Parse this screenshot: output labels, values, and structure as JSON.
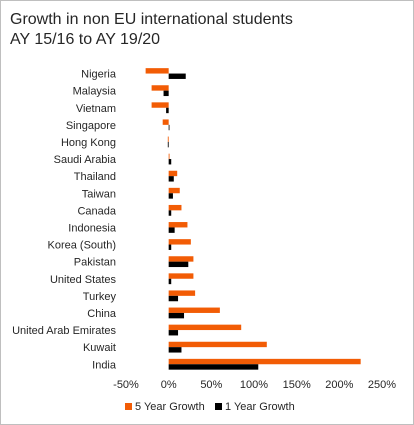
{
  "chart_data": {
    "type": "bar",
    "orientation": "horizontal",
    "title": "Growth in non EU international students",
    "subtitle": "AY 15/16 to AY 19/20",
    "categories": [
      "Nigeria",
      "Malaysia",
      "Vietnam",
      "Singapore",
      "Hong Kong",
      "Saudi Arabia",
      "Thailand",
      "Taiwan",
      "Canada",
      "Indonesia",
      "Korea (South)",
      "Pakistan",
      "United States",
      "Turkey",
      "China",
      "United Arab Emirates",
      "Kuwait",
      "India"
    ],
    "series": [
      {
        "name": "5 Year Growth",
        "color": "#f25c05",
        "values": [
          -27,
          -20,
          -20,
          -7,
          -1,
          1,
          10,
          13,
          15,
          22,
          26,
          29,
          29,
          31,
          60,
          85,
          115,
          225
        ]
      },
      {
        "name": "1 Year Growth",
        "color": "#000000",
        "values": [
          20,
          -6,
          -3,
          0,
          -1,
          3,
          6,
          5,
          3,
          7,
          3,
          23,
          3,
          11,
          18,
          11,
          15,
          105
        ]
      }
    ],
    "xlim": [
      -50,
      250
    ],
    "xticks": [
      "-50%",
      "0%",
      "50%",
      "100%",
      "150%",
      "200%",
      "250%"
    ],
    "legend_position": "bottom",
    "grid": false
  }
}
